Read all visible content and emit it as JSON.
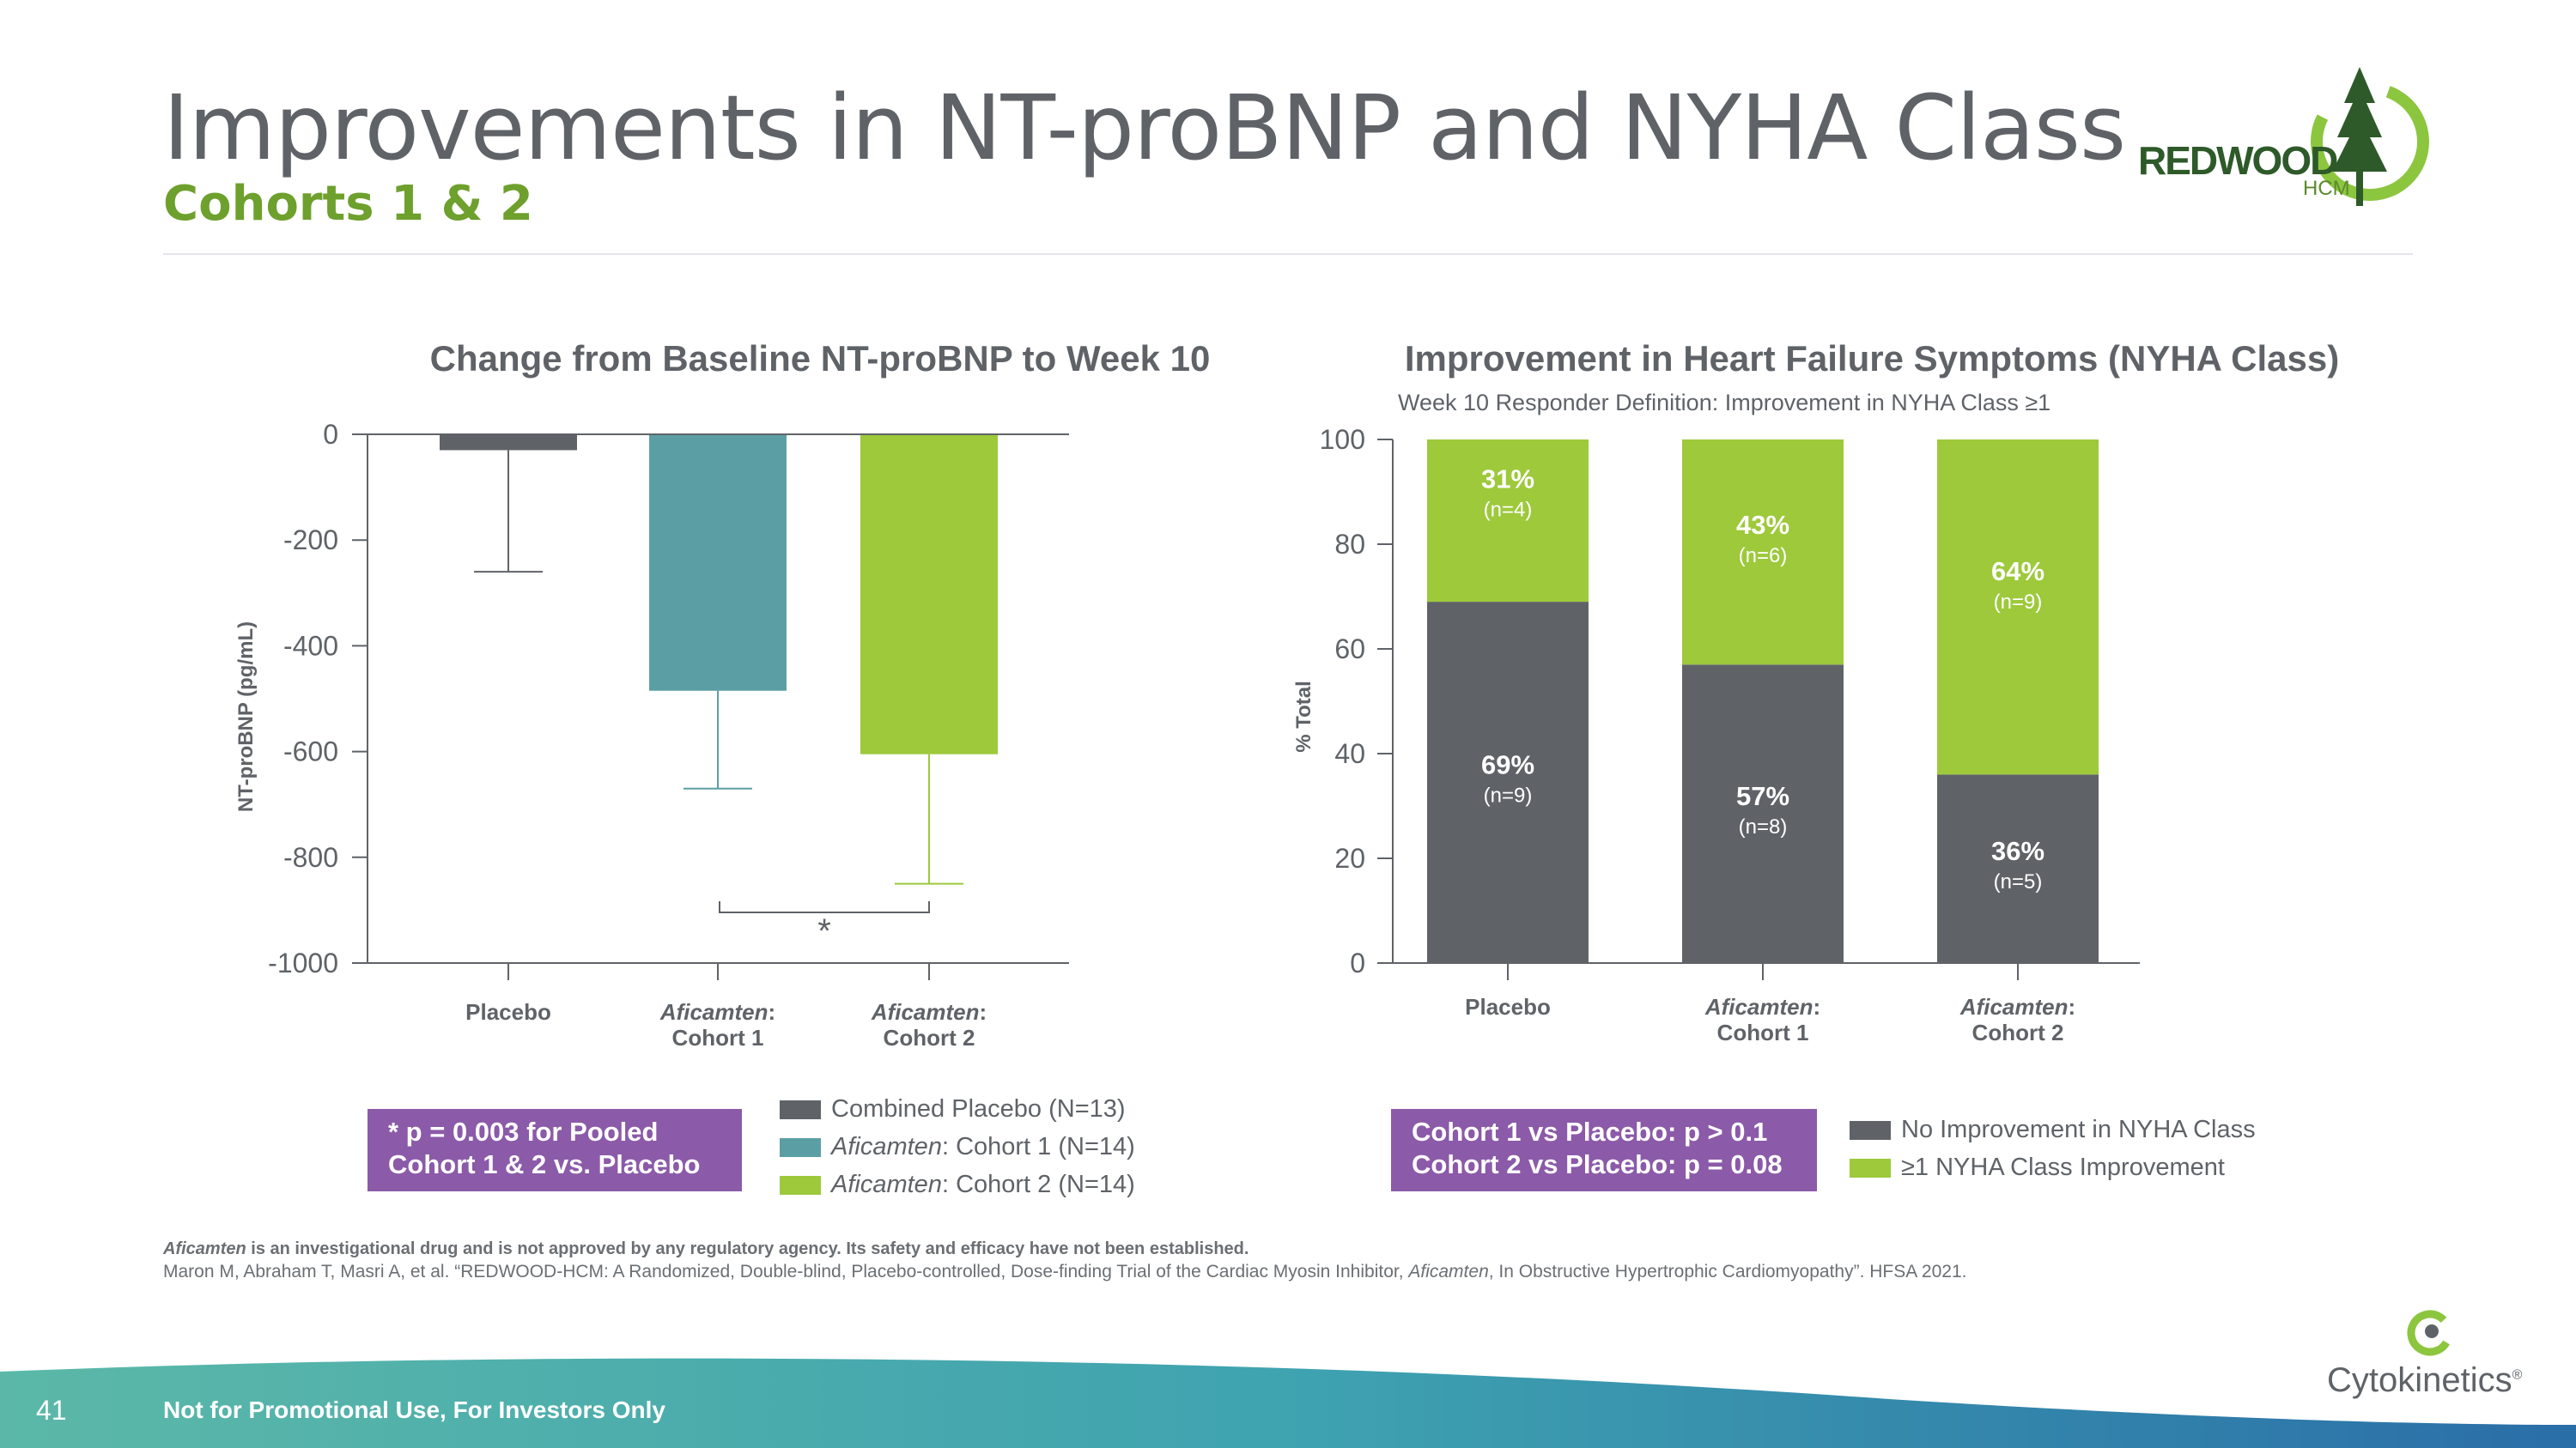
{
  "header": {
    "title": "Improvements in NT-proBNP and NYHA Class",
    "subtitle": "Cohorts 1 & 2"
  },
  "logo": {
    "name": "REDWOOD",
    "sub": "HCM"
  },
  "colors": {
    "gray": "#5f6368",
    "teal": "#5b9fa4",
    "green": "#9dc93b",
    "purple": "#8b5aa8",
    "accent": "#6ea02d"
  },
  "chart_data": [
    {
      "type": "bar",
      "title": "Change from Baseline NT-proBNP to Week 10",
      "ylabel": "NT-proBNP (pg/mL)",
      "xlabel": "",
      "ylim": [
        -1000,
        0
      ],
      "yticks": [
        "0",
        "-200",
        "-400",
        "-600",
        "-800",
        "-1000"
      ],
      "ytick_values": [
        0,
        -200,
        -400,
        -600,
        -800,
        -1000
      ],
      "categories": [
        {
          "drug": "",
          "label": "Placebo"
        },
        {
          "drug": "Aficamten",
          "label": "Cohort 1"
        },
        {
          "drug": "Aficamten",
          "label": "Cohort 2"
        }
      ],
      "category_suffix": ":",
      "values": [
        -30,
        -485,
        -605
      ],
      "error_low": [
        -260,
        -670,
        -850
      ],
      "bar_colors": [
        "#5f6368",
        "#5b9fa4",
        "#9dc93b"
      ],
      "annotation": "*",
      "legend": [
        {
          "prefix": "Combined Placebo (N=13)",
          "drug": "",
          "suffix": "",
          "color": "#5f6368"
        },
        {
          "prefix": "",
          "drug": "Aficamten",
          "suffix": ": Cohort 1 (N=14)",
          "color": "#5b9fa4"
        },
        {
          "prefix": "",
          "drug": "Aficamten",
          "suffix": ": Cohort 2 (N=14)",
          "color": "#9dc93b"
        }
      ],
      "note_lines": [
        "* p = 0.003 for Pooled",
        "Cohort 1 & 2 vs. Placebo"
      ]
    },
    {
      "type": "bar",
      "stacked": true,
      "title": "Improvement in Heart Failure Symptoms (NYHA Class)",
      "subtitle": "Week 10 Responder Definition: Improvement in NYHA Class ≥1",
      "ylabel": "% Total",
      "ylim": [
        0,
        100
      ],
      "yticks": [
        "100",
        "80",
        "60",
        "40",
        "20",
        "0"
      ],
      "ytick_values": [
        100,
        80,
        60,
        40,
        20,
        0
      ],
      "categories": [
        {
          "drug": "",
          "label": "Placebo"
        },
        {
          "drug": "Aficamten",
          "label": "Cohort 1"
        },
        {
          "drug": "Aficamten",
          "label": "Cohort 2"
        }
      ],
      "category_suffix": ":",
      "series": [
        {
          "name": "No Improvement in NYHA Class",
          "color": "#5f6368",
          "values": [
            69,
            57,
            36
          ],
          "labels": [
            "69%",
            "57%",
            "36%"
          ],
          "n": [
            "(n=9)",
            "(n=8)",
            "(n=5)"
          ]
        },
        {
          "name": "≥1 NYHA Class Improvement",
          "color": "#9dc93b",
          "values": [
            31,
            43,
            64
          ],
          "labels": [
            "31%",
            "43%",
            "64%"
          ],
          "n": [
            "(n=4)",
            "(n=6)",
            "(n=9)"
          ]
        }
      ],
      "note_lines": [
        "Cohort 1 vs Placebo: p > 0.1",
        "Cohort 2 vs Placebo: p = 0.08"
      ]
    }
  ],
  "footnotes": {
    "disclaimer_drug": "Aficamten",
    "disclaimer_text": " is an investigational drug and is not approved by any regulatory agency. Its safety and efficacy have not been established.",
    "ref_pre": "Maron M, Abraham T, Masri A, et al. “REDWOOD-HCM: A Randomized, Double-blind, Placebo-controlled, Dose-finding Trial of the Cardiac Myosin Inhibitor, ",
    "ref_drug": "Aficamten",
    "ref_post": ", In Obstructive Hypertrophic Cardiomyopathy”. HFSA 2021."
  },
  "footer": {
    "page_number": "41",
    "text": "Not for Promotional Use, For Investors Only",
    "company": "Cytokinetics",
    "company_mark": "®"
  }
}
